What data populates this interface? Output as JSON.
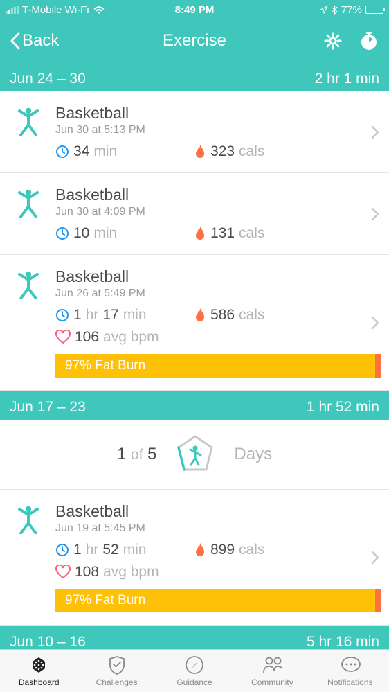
{
  "colors": {
    "teal": "#3fc7bc",
    "tealDark": "#2aa99e",
    "text": "#4a4a4a",
    "textMuted": "#9b9b9b",
    "textLight": "#b5b5b5",
    "statClock": "#2196f3",
    "statFlame": "#ff7043",
    "statHeart": "#ff5a7a",
    "fatBarMain": "#ffc107",
    "fatBarEnd": "#ff7043",
    "divider": "#e3e3e3",
    "tabBg": "#f7f7f7",
    "tabInactive": "#8a8a8a"
  },
  "statusBar": {
    "carrier": "T-Mobile Wi-Fi",
    "time": "8:49 PM",
    "batteryPct": "77%"
  },
  "nav": {
    "back": "Back",
    "title": "Exercise"
  },
  "weeks": [
    {
      "range": "Jun 24 – 30",
      "total": "2 hr 1 min",
      "daysBadge": null,
      "exercises": [
        {
          "name": "Basketball",
          "when": "Jun 30 at 5:13 PM",
          "durationVal": "34",
          "durationUnit": "min",
          "cals": "323",
          "calsUnit": "cals",
          "bpm": null,
          "fatBurn": null
        },
        {
          "name": "Basketball",
          "when": "Jun 30 at 4:09 PM",
          "durationVal": "10",
          "durationUnit": "min",
          "cals": "131",
          "calsUnit": "cals",
          "bpm": null,
          "fatBurn": null
        },
        {
          "name": "Basketball",
          "when": "Jun 26 at 5:49 PM",
          "durationVal": "1",
          "durationUnit": "hr",
          "durationVal2": "17",
          "durationUnit2": "min",
          "cals": "586",
          "calsUnit": "cals",
          "bpm": "106",
          "bpmUnit": "avg bpm",
          "fatBurn": "97% Fat Burn"
        }
      ]
    },
    {
      "range": "Jun 17 – 23",
      "total": "1 hr 52 min",
      "daysBadge": {
        "n": "1",
        "of": "of",
        "total": "5",
        "label": "Days"
      },
      "exercises": [
        {
          "name": "Basketball",
          "when": "Jun 19 at 5:45 PM",
          "durationVal": "1",
          "durationUnit": "hr",
          "durationVal2": "52",
          "durationUnit2": "min",
          "cals": "899",
          "calsUnit": "cals",
          "bpm": "108",
          "bpmUnit": "avg bpm",
          "fatBurn": "97% Fat Burn"
        }
      ]
    },
    {
      "range": "Jun 10 – 16",
      "total": "5 hr 16 min",
      "daysBadge": null,
      "exercises": []
    }
  ],
  "tabs": [
    {
      "label": "Dashboard",
      "icon": "diamond",
      "active": true
    },
    {
      "label": "Challenges",
      "icon": "shield",
      "active": false
    },
    {
      "label": "Guidance",
      "icon": "compass",
      "active": false
    },
    {
      "label": "Community",
      "icon": "people",
      "active": false
    },
    {
      "label": "Notifications",
      "icon": "chat",
      "active": false
    }
  ]
}
